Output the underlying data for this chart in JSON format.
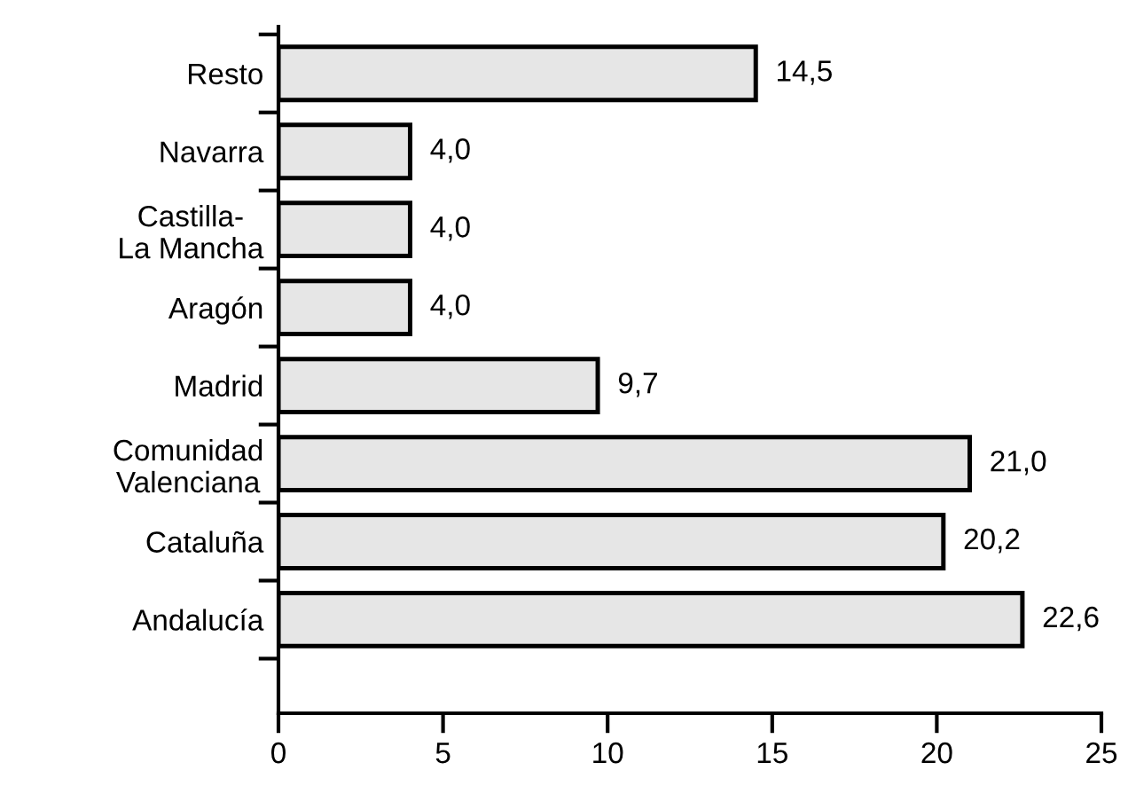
{
  "chart_data": {
    "type": "bar",
    "orientation": "horizontal",
    "categories": [
      "Resto",
      "Navarra",
      "Castilla-\nLa Mancha",
      "Aragón",
      "Madrid",
      "Comunidad\nValenciana",
      "Cataluña",
      "Andalucía"
    ],
    "values": [
      14.5,
      4.0,
      4.0,
      4.0,
      9.7,
      21.0,
      20.2,
      22.6
    ],
    "value_labels": [
      "14,5",
      "4,0",
      "4,0",
      "4,0",
      "9,7",
      "21,0",
      "20,2",
      "22,6"
    ],
    "color": "#e6e6e6",
    "xlim": [
      0,
      25
    ],
    "xticks": [
      0,
      5,
      10,
      15,
      20,
      25
    ],
    "grid": false,
    "legend": false
  }
}
